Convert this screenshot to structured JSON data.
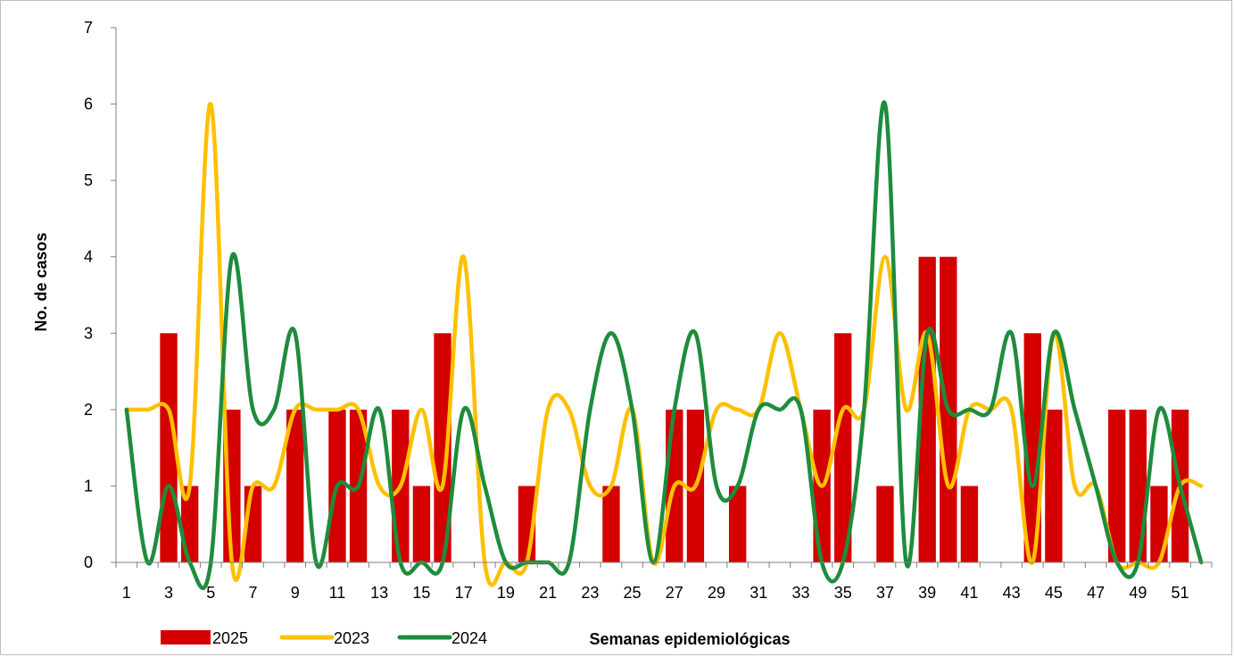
{
  "chart_data": {
    "type": "bar",
    "xlabel": "Semanas epidemiológicas",
    "ylabel": "No. de casos",
    "ylim": [
      0,
      7
    ],
    "yticks": [
      0,
      1,
      2,
      3,
      4,
      5,
      6,
      7
    ],
    "x": [
      1,
      2,
      3,
      4,
      5,
      6,
      7,
      8,
      9,
      10,
      11,
      12,
      13,
      14,
      15,
      16,
      17,
      18,
      19,
      20,
      21,
      22,
      23,
      24,
      25,
      26,
      27,
      28,
      29,
      30,
      31,
      32,
      33,
      34,
      35,
      36,
      37,
      38,
      39,
      40,
      41,
      42,
      43,
      44,
      45,
      46,
      47,
      48,
      49,
      50,
      51,
      52
    ],
    "xtick_labels": [
      "1",
      "3",
      "5",
      "7",
      "9",
      "11",
      "13",
      "15",
      "17",
      "19",
      "21",
      "23",
      "25",
      "27",
      "29",
      "31",
      "33",
      "35",
      "37",
      "39",
      "41",
      "43",
      "45",
      "47",
      "49",
      "51"
    ],
    "grid": false,
    "legend_position": "bottom-left",
    "series": [
      {
        "name": "2025",
        "type": "bar",
        "color": "#d40000",
        "values": [
          0,
          0,
          3,
          1,
          0,
          2,
          1,
          0,
          2,
          0,
          2,
          2,
          0,
          2,
          1,
          3,
          0,
          0,
          0,
          1,
          0,
          0,
          0,
          1,
          0,
          0,
          2,
          2,
          0,
          1,
          0,
          0,
          0,
          2,
          3,
          0,
          1,
          0,
          4,
          4,
          1,
          0,
          0,
          3,
          2,
          0,
          0,
          2,
          2,
          1,
          2,
          0
        ]
      },
      {
        "name": "2023",
        "type": "line",
        "color": "#ffc000",
        "values": [
          2,
          2,
          2,
          1,
          6,
          0,
          1,
          1,
          2,
          2,
          2,
          2,
          1,
          1,
          2,
          1,
          4,
          0,
          0,
          0,
          2,
          2,
          1,
          1,
          2,
          0,
          1,
          1,
          2,
          2,
          2,
          3,
          2,
          1,
          2,
          2,
          4,
          2,
          3,
          1,
          2,
          2,
          2,
          0,
          3,
          1,
          1,
          0,
          0,
          0,
          1,
          1
        ]
      },
      {
        "name": "2024",
        "type": "line",
        "color": "#1e8c3c",
        "values": [
          2,
          0,
          1,
          0,
          0,
          4,
          2,
          2,
          3,
          0,
          1,
          1,
          2,
          0,
          0,
          0,
          2,
          1,
          0,
          0,
          0,
          0,
          2,
          3,
          2,
          0,
          2,
          3,
          1,
          1,
          2,
          2,
          2,
          0,
          0,
          2,
          6,
          0,
          3,
          2,
          2,
          2,
          3,
          1,
          3,
          2,
          1,
          0,
          0,
          2,
          1,
          0
        ]
      }
    ]
  }
}
